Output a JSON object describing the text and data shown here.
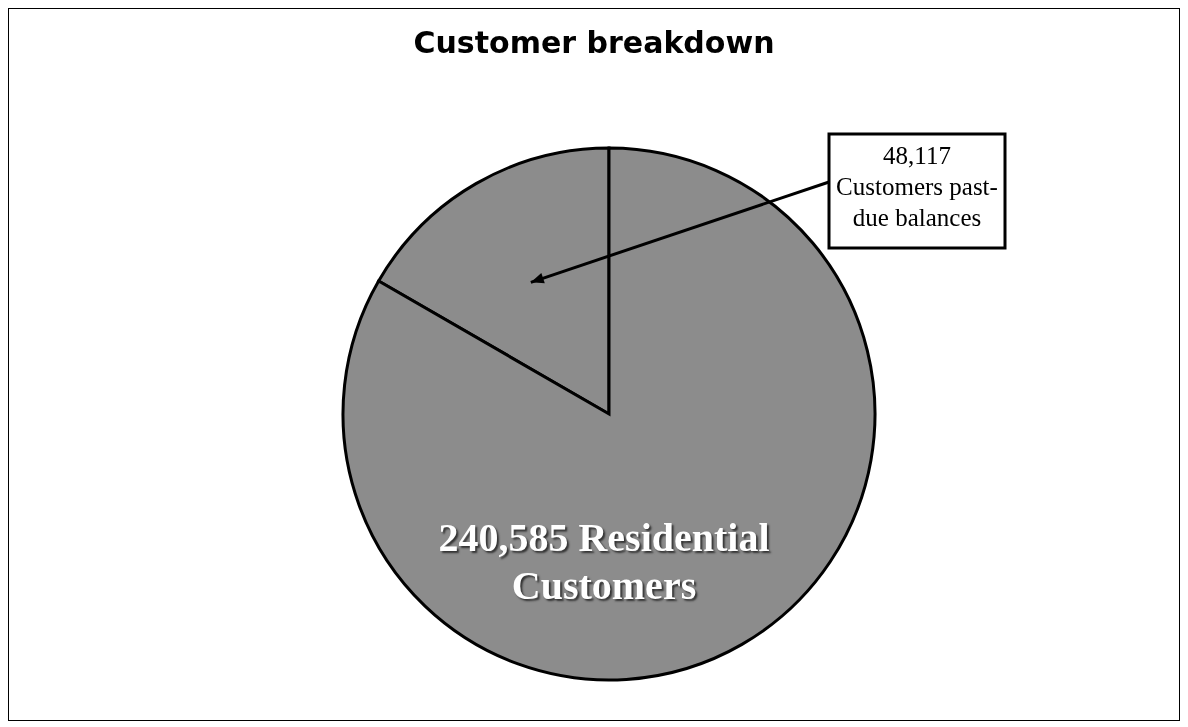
{
  "chart_data": {
    "type": "pie",
    "title": "Customer breakdown",
    "categories": [
      "Customers past-due balances",
      "Residential Customers"
    ],
    "values": [
      48117,
      240585
    ],
    "value_labels": [
      "48,117",
      "240,585"
    ],
    "colors": [
      "#8c8c8c",
      "#8c8c8c"
    ],
    "legend": false
  }
}
